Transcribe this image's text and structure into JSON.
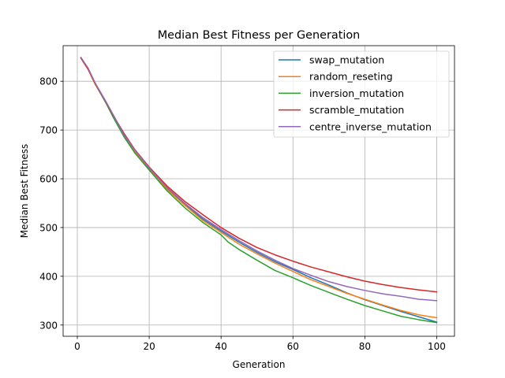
{
  "chart_data": {
    "type": "line",
    "title": "Median Best Fitness per Generation",
    "xlabel": "Generation",
    "ylabel": "Median Best Fitness",
    "xlim": [
      -3.95,
      104.95
    ],
    "ylim": [
      277,
      873
    ],
    "xticks": [
      0,
      20,
      40,
      60,
      80,
      100
    ],
    "yticks": [
      300,
      400,
      500,
      600,
      700,
      800
    ],
    "grid": true,
    "legend_position": "upper right",
    "series": [
      {
        "name": "swap_mutation",
        "color": "#1f77b4",
        "points": [
          [
            1,
            848
          ],
          [
            3,
            825
          ],
          [
            5,
            795
          ],
          [
            8,
            755
          ],
          [
            10,
            728
          ],
          [
            13,
            688
          ],
          [
            16,
            655
          ],
          [
            20,
            618
          ],
          [
            25,
            580
          ],
          [
            30,
            547
          ],
          [
            35,
            517
          ],
          [
            40,
            493
          ],
          [
            45,
            470
          ],
          [
            50,
            449
          ],
          [
            55,
            430
          ],
          [
            60,
            414
          ],
          [
            65,
            397
          ],
          [
            70,
            382
          ],
          [
            75,
            366
          ],
          [
            80,
            352
          ],
          [
            85,
            340
          ],
          [
            90,
            328
          ],
          [
            95,
            317
          ],
          [
            100,
            306
          ]
        ]
      },
      {
        "name": "random_reseting",
        "color": "#ff7f0e",
        "points": [
          [
            1,
            847
          ],
          [
            3,
            824
          ],
          [
            5,
            793
          ],
          [
            8,
            756
          ],
          [
            10,
            728
          ],
          [
            13,
            690
          ],
          [
            16,
            657
          ],
          [
            20,
            620
          ],
          [
            25,
            578
          ],
          [
            30,
            545
          ],
          [
            35,
            514
          ],
          [
            40,
            490
          ],
          [
            45,
            466
          ],
          [
            50,
            446
          ],
          [
            55,
            427
          ],
          [
            60,
            410
          ],
          [
            65,
            393
          ],
          [
            70,
            379
          ],
          [
            75,
            365
          ],
          [
            80,
            353
          ],
          [
            85,
            341
          ],
          [
            90,
            330
          ],
          [
            95,
            321
          ],
          [
            100,
            315
          ]
        ]
      },
      {
        "name": "inversion_mutation",
        "color": "#2ca02c",
        "points": [
          [
            1,
            848
          ],
          [
            3,
            826
          ],
          [
            5,
            795
          ],
          [
            8,
            755
          ],
          [
            10,
            726
          ],
          [
            13,
            686
          ],
          [
            16,
            653
          ],
          [
            20,
            618
          ],
          [
            25,
            575
          ],
          [
            30,
            540
          ],
          [
            35,
            510
          ],
          [
            40,
            485
          ],
          [
            42,
            470
          ],
          [
            45,
            455
          ],
          [
            50,
            433
          ],
          [
            55,
            412
          ],
          [
            60,
            397
          ],
          [
            65,
            381
          ],
          [
            70,
            367
          ],
          [
            75,
            353
          ],
          [
            80,
            340
          ],
          [
            85,
            329
          ],
          [
            90,
            318
          ],
          [
            95,
            311
          ],
          [
            100,
            305
          ]
        ]
      },
      {
        "name": "scramble_mutation",
        "color": "#d62728",
        "points": [
          [
            1,
            848
          ],
          [
            3,
            825
          ],
          [
            5,
            795
          ],
          [
            8,
            757
          ],
          [
            10,
            730
          ],
          [
            13,
            693
          ],
          [
            16,
            660
          ],
          [
            20,
            624
          ],
          [
            25,
            585
          ],
          [
            30,
            553
          ],
          [
            35,
            526
          ],
          [
            40,
            500
          ],
          [
            45,
            478
          ],
          [
            50,
            459
          ],
          [
            55,
            444
          ],
          [
            60,
            431
          ],
          [
            65,
            419
          ],
          [
            70,
            409
          ],
          [
            75,
            399
          ],
          [
            80,
            390
          ],
          [
            85,
            383
          ],
          [
            90,
            377
          ],
          [
            95,
            372
          ],
          [
            100,
            368
          ]
        ]
      },
      {
        "name": "centre_inverse_mutation",
        "color": "#9467bd",
        "points": [
          [
            1,
            849
          ],
          [
            3,
            827
          ],
          [
            5,
            796
          ],
          [
            8,
            758
          ],
          [
            10,
            731
          ],
          [
            13,
            690
          ],
          [
            16,
            659
          ],
          [
            20,
            622
          ],
          [
            25,
            582
          ],
          [
            30,
            549
          ],
          [
            35,
            520
          ],
          [
            40,
            496
          ],
          [
            45,
            473
          ],
          [
            50,
            452
          ],
          [
            55,
            433
          ],
          [
            60,
            416
          ],
          [
            65,
            402
          ],
          [
            70,
            389
          ],
          [
            75,
            379
          ],
          [
            80,
            371
          ],
          [
            85,
            364
          ],
          [
            90,
            359
          ],
          [
            95,
            353
          ],
          [
            100,
            350
          ]
        ]
      }
    ]
  }
}
